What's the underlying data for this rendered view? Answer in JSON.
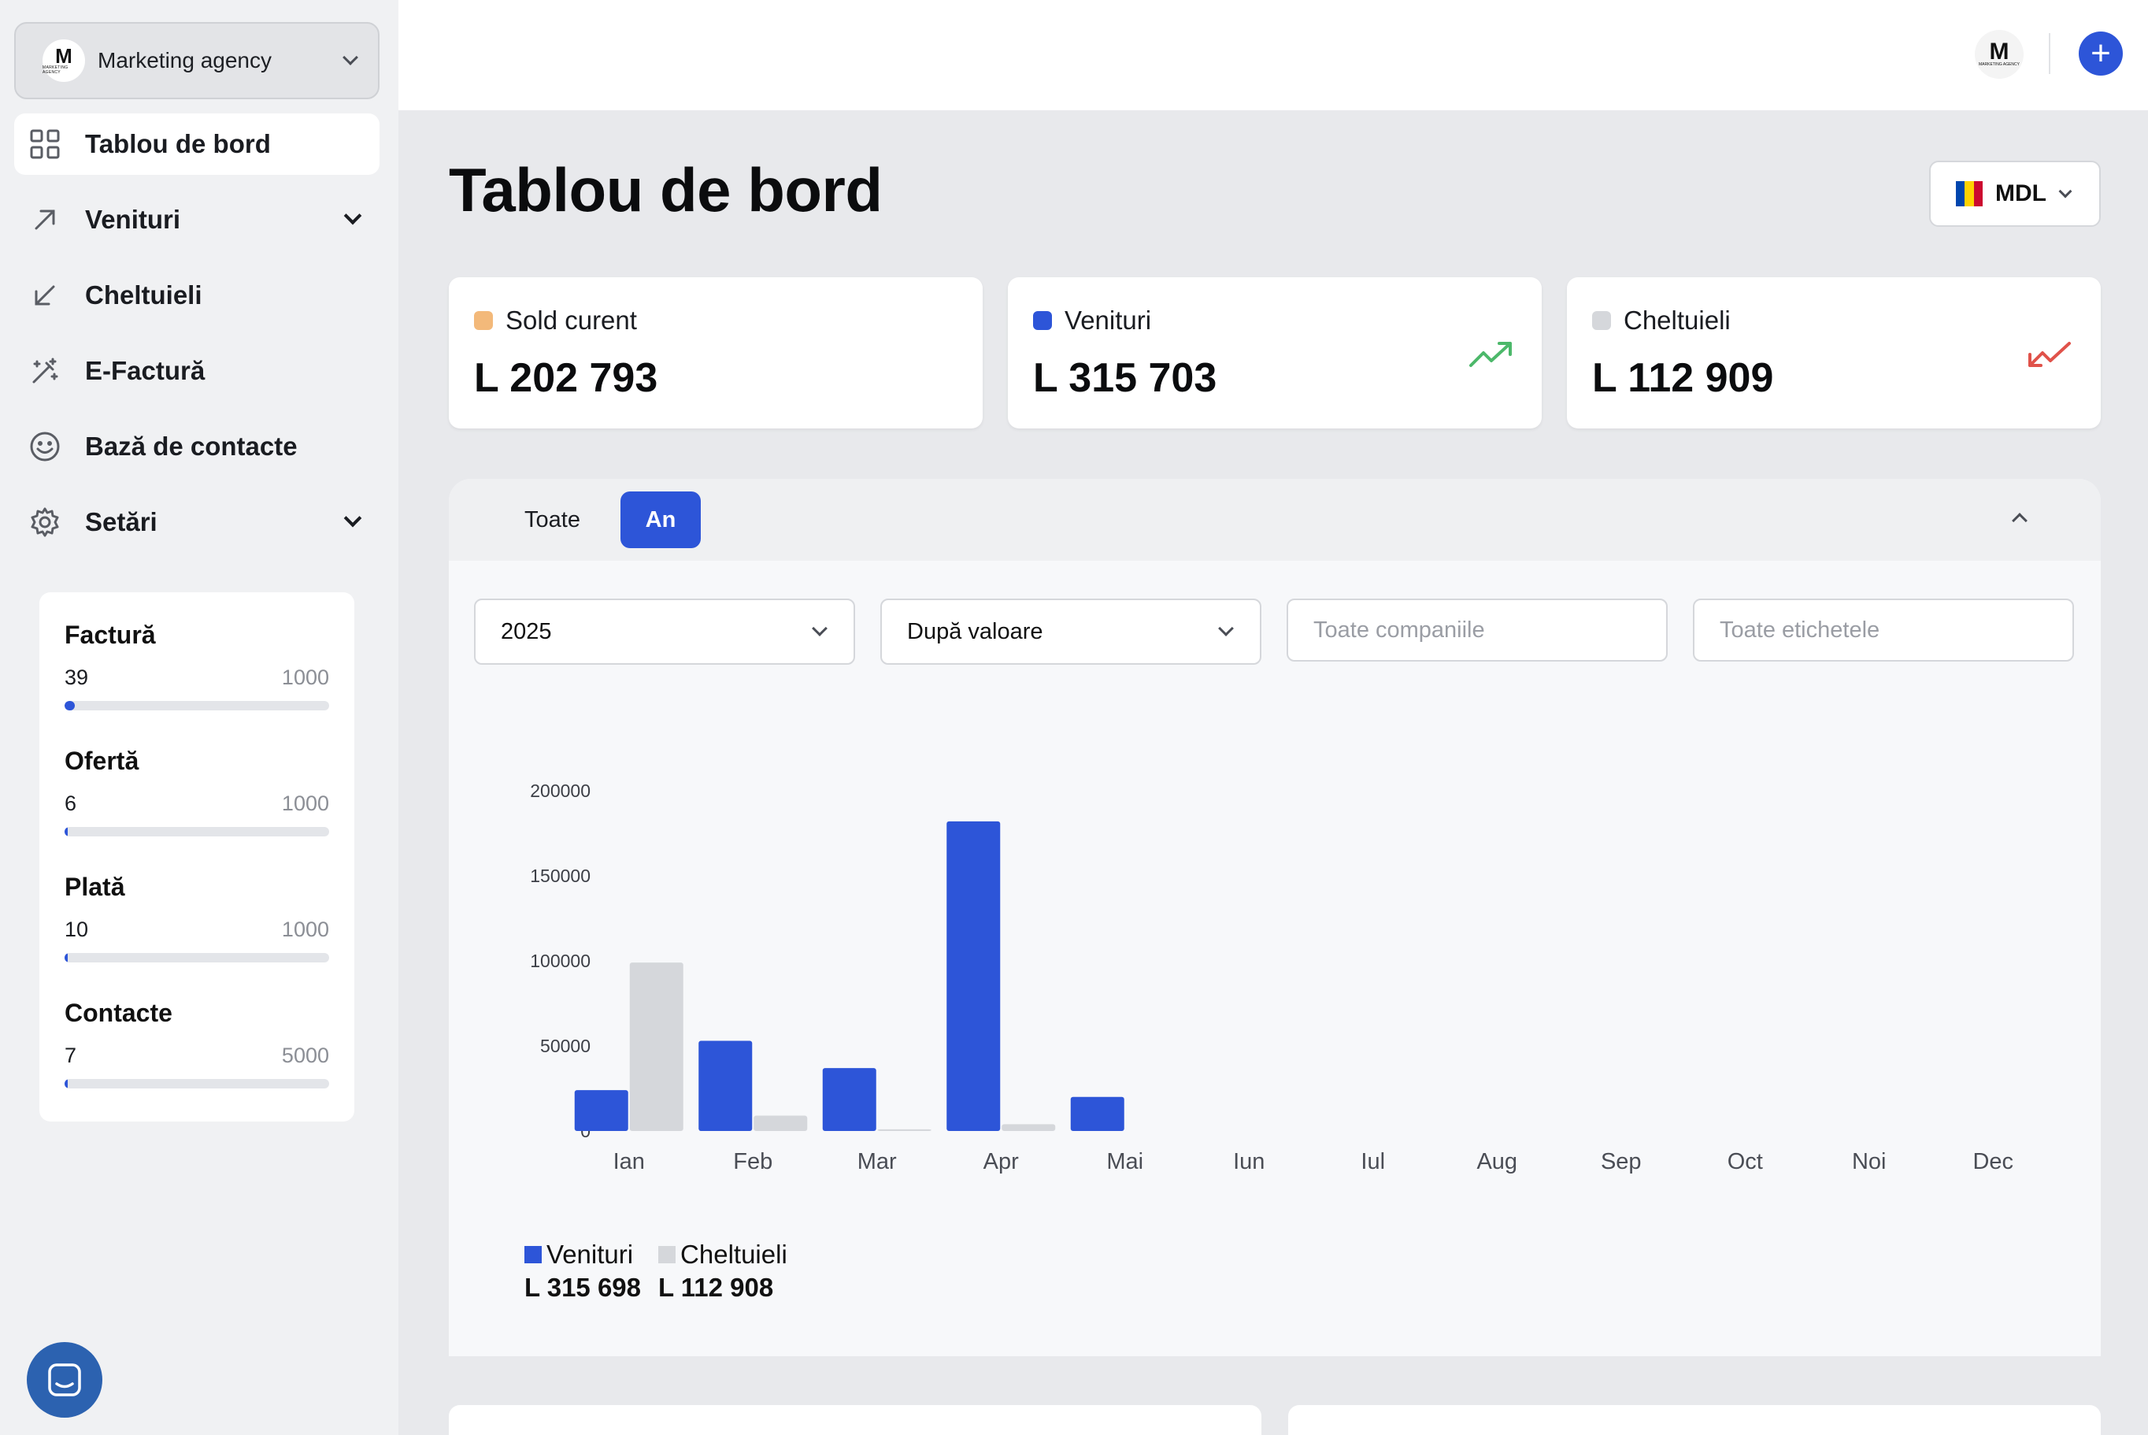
{
  "org": {
    "name": "Marketing agency",
    "logo_letter": "M",
    "logo_sub": "MARKETING AGENCY"
  },
  "nav": [
    {
      "label": "Tablou de bord",
      "icon": "grid-icon",
      "active": true
    },
    {
      "label": "Venituri",
      "icon": "arrow-up-right-icon",
      "expandable": true
    },
    {
      "label": "Cheltuieli",
      "icon": "arrow-down-left-icon"
    },
    {
      "label": "E-Factură",
      "icon": "magic-wand-icon"
    },
    {
      "label": "Bază de contacte",
      "icon": "smile-icon"
    },
    {
      "label": "Setări",
      "icon": "gear-icon",
      "expandable": true
    }
  ],
  "limits": [
    {
      "title": "Factură",
      "count": "39",
      "max": "1000",
      "fraction": 0.039
    },
    {
      "title": "Ofertă",
      "count": "6",
      "max": "1000",
      "fraction": 0.006
    },
    {
      "title": "Plată",
      "count": "10",
      "max": "1000",
      "fraction": 0.01
    },
    {
      "title": "Contacte",
      "count": "7",
      "max": "5000",
      "fraction": 0.0014
    }
  ],
  "page_title": "Tablou de bord",
  "currency": {
    "label": "MDL",
    "flag_colors": [
      "#0046ae",
      "#ffd200",
      "#cc092f"
    ]
  },
  "stats": [
    {
      "label": "Sold curent",
      "value": "L 202 793",
      "color": "#f3b97a"
    },
    {
      "label": "Venituri",
      "value": "L 315 703",
      "color": "#2d55d8",
      "trend": "up"
    },
    {
      "label": "Cheltuieli",
      "value": "L 112 909",
      "color": "#d5d7db",
      "trend": "down"
    }
  ],
  "tabs": {
    "all": "Toate",
    "year": "An"
  },
  "filters": {
    "year": "2025",
    "sort": "După valoare",
    "companies_placeholder": "Toate companiile",
    "tags_placeholder": "Toate etichetele"
  },
  "chart_data": {
    "type": "bar",
    "categories": [
      "Ian",
      "Feb",
      "Mar",
      "Apr",
      "Mai",
      "Iun",
      "Iul",
      "Aug",
      "Sep",
      "Oct",
      "Noi",
      "Dec"
    ],
    "series": [
      {
        "name": "Venituri",
        "color": "#2d55d8",
        "values": [
          24000,
          53000,
          37000,
          182000,
          20000,
          0,
          0,
          0,
          0,
          0,
          0,
          0
        ]
      },
      {
        "name": "Cheltuieli",
        "color": "#d5d7db",
        "values": [
          99000,
          9000,
          1000,
          4000,
          0,
          0,
          0,
          0,
          0,
          0,
          0,
          0
        ]
      }
    ],
    "yticks": [
      0,
      50000,
      100000,
      150000,
      200000
    ],
    "ylim": [
      0,
      200000
    ],
    "legend": "bottom-left"
  },
  "legend": [
    {
      "name": "Venituri",
      "value": "L 315 698",
      "color": "#2d55d8"
    },
    {
      "name": "Cheltuieli",
      "value": "L 112 908",
      "color": "#d5d7db"
    }
  ]
}
